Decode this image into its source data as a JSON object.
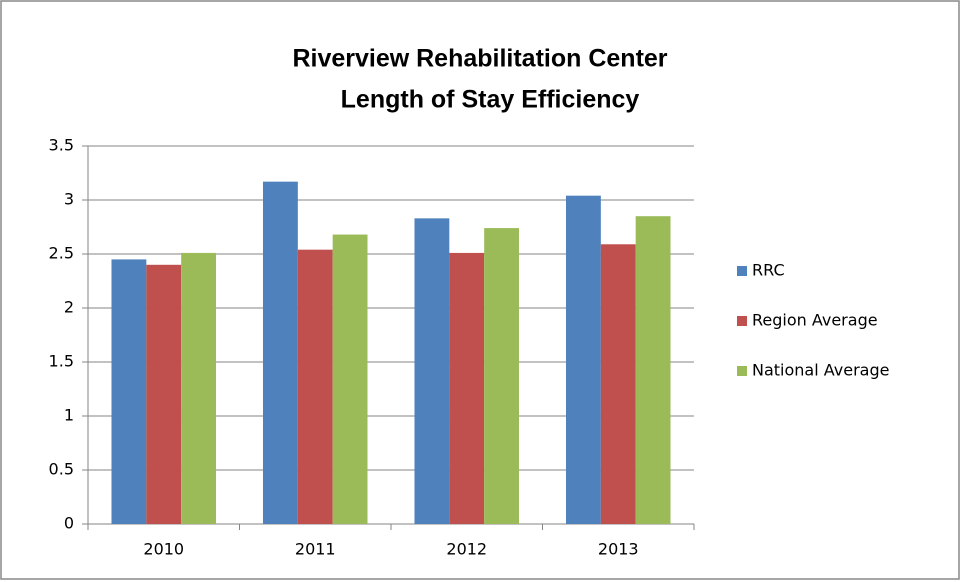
{
  "chart_data": {
    "type": "bar",
    "title": [
      "Riverview Rehabilitation Center",
      "Length of Stay Efficiency"
    ],
    "categories": [
      "2010",
      "2011",
      "2012",
      "2013"
    ],
    "series": [
      {
        "name": "RRC",
        "color": "#4f81bd",
        "values": [
          2.45,
          3.17,
          2.83,
          3.04
        ]
      },
      {
        "name": "Region Average",
        "color": "#c0504d",
        "values": [
          2.4,
          2.54,
          2.51,
          2.59
        ]
      },
      {
        "name": "National Average",
        "color": "#9bbb59",
        "values": [
          2.51,
          2.68,
          2.74,
          2.85
        ]
      }
    ],
    "ylim": [
      0,
      3.5
    ],
    "yticks": [
      0,
      0.5,
      1,
      1.5,
      2,
      2.5,
      3,
      3.5
    ],
    "grid": true,
    "legend": "right"
  }
}
